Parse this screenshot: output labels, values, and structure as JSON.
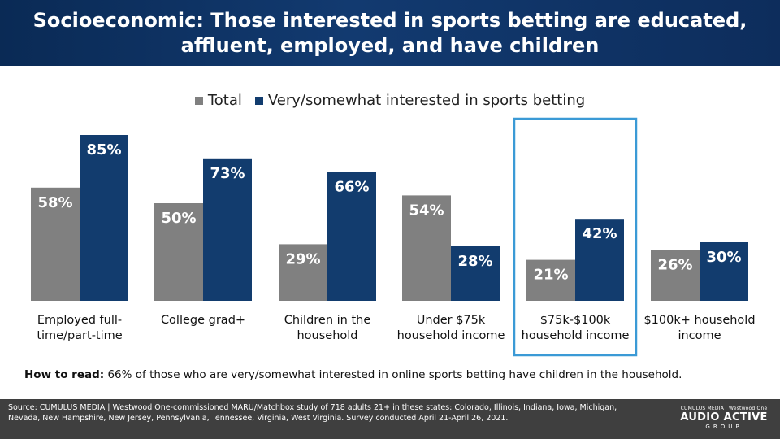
{
  "header": {
    "title": "Socioeconomic: Those interested in sports betting are educated, affluent, employed, and have children"
  },
  "colors": {
    "total": "#808080",
    "interested": "#123c6e",
    "highlight": "#3b9ad6",
    "header_bg": "#0d2d5c",
    "footer_bg": "#3f3f3f"
  },
  "chart_data": {
    "type": "bar",
    "categories": [
      [
        "Employed full-",
        "time/part-time"
      ],
      [
        "College grad+"
      ],
      [
        "Children in the",
        "household"
      ],
      [
        "Under $75k",
        "household income"
      ],
      [
        "$75k-$100k",
        "household income"
      ],
      [
        "$100k+ household",
        "income"
      ]
    ],
    "series": [
      {
        "name": "Total",
        "values": [
          58,
          50,
          29,
          54,
          21,
          26
        ],
        "labels": [
          "58%",
          "50%",
          "29%",
          "54%",
          "21%",
          "26%"
        ]
      },
      {
        "name": "Very/somewhat interested in sports betting",
        "values": [
          85,
          73,
          66,
          28,
          42,
          30
        ],
        "labels": [
          "85%",
          "73%",
          "66%",
          "28%",
          "42%",
          "30%"
        ]
      }
    ],
    "ylim": [
      0,
      100
    ],
    "highlighted_category_index": 4,
    "legend_position": "top-center",
    "grid": false
  },
  "howto": {
    "label": "How to read:",
    "text": " 66% of those who are very/somewhat interested in online sports betting have children in the household."
  },
  "footer": {
    "source": "Source: CUMULUS MEDIA | Westwood One-commissioned  MARU/Matchbox study of 718 adults 21+ in these states: Colorado,  Illinois, Indiana, Iowa, Michigan, Nevada, New Hampshire, New Jersey,  Pennsylvania, Tennessee, Virginia,  West Virginia.  Survey conducted April 21-April  26, 2021.",
    "logo_brand_left": "CUMULUS MEDIA",
    "logo_brand_right": "Westwood One",
    "logo_main": "AUDIO ACTIVE",
    "logo_sub": "GROUP"
  }
}
